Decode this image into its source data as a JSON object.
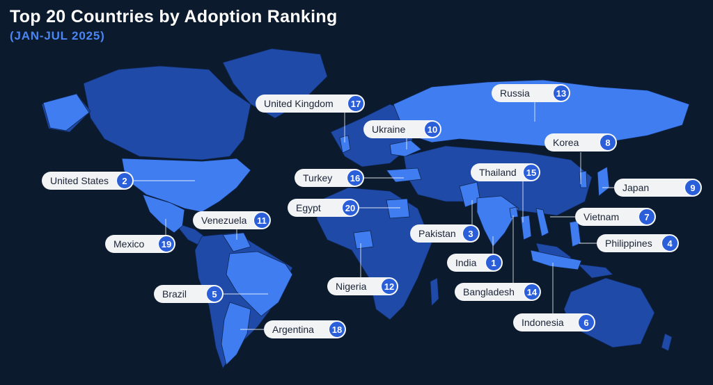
{
  "title": "Top 20 Countries by Adoption Ranking",
  "subtitle": "(JAN-JUL 2025)",
  "colors": {
    "background": "#0b1a2c",
    "land_base": "#1f4aa8",
    "land_highlight": "#3f7df0",
    "badge": "#2b5fd9",
    "subtitle": "#4b86f3"
  },
  "countries": [
    {
      "name": "India",
      "rank": "1"
    },
    {
      "name": "United States",
      "rank": "2"
    },
    {
      "name": "Pakistan",
      "rank": "3"
    },
    {
      "name": "Philippines",
      "rank": "4"
    },
    {
      "name": "Brazil",
      "rank": "5"
    },
    {
      "name": "Indonesia",
      "rank": "6"
    },
    {
      "name": "Vietnam",
      "rank": "7"
    },
    {
      "name": "Korea",
      "rank": "8"
    },
    {
      "name": "Japan",
      "rank": "9"
    },
    {
      "name": "Ukraine",
      "rank": "10"
    },
    {
      "name": "Venezuela",
      "rank": "11"
    },
    {
      "name": "Nigeria",
      "rank": "12"
    },
    {
      "name": "Russia",
      "rank": "13"
    },
    {
      "name": "Bangladesh",
      "rank": "14"
    },
    {
      "name": "Thailand",
      "rank": "15"
    },
    {
      "name": "Turkey",
      "rank": "16"
    },
    {
      "name": "United Kingdom",
      "rank": "17"
    },
    {
      "name": "Argentina",
      "rank": "18"
    },
    {
      "name": "Mexico",
      "rank": "19"
    },
    {
      "name": "Egypt",
      "rank": "20"
    }
  ]
}
